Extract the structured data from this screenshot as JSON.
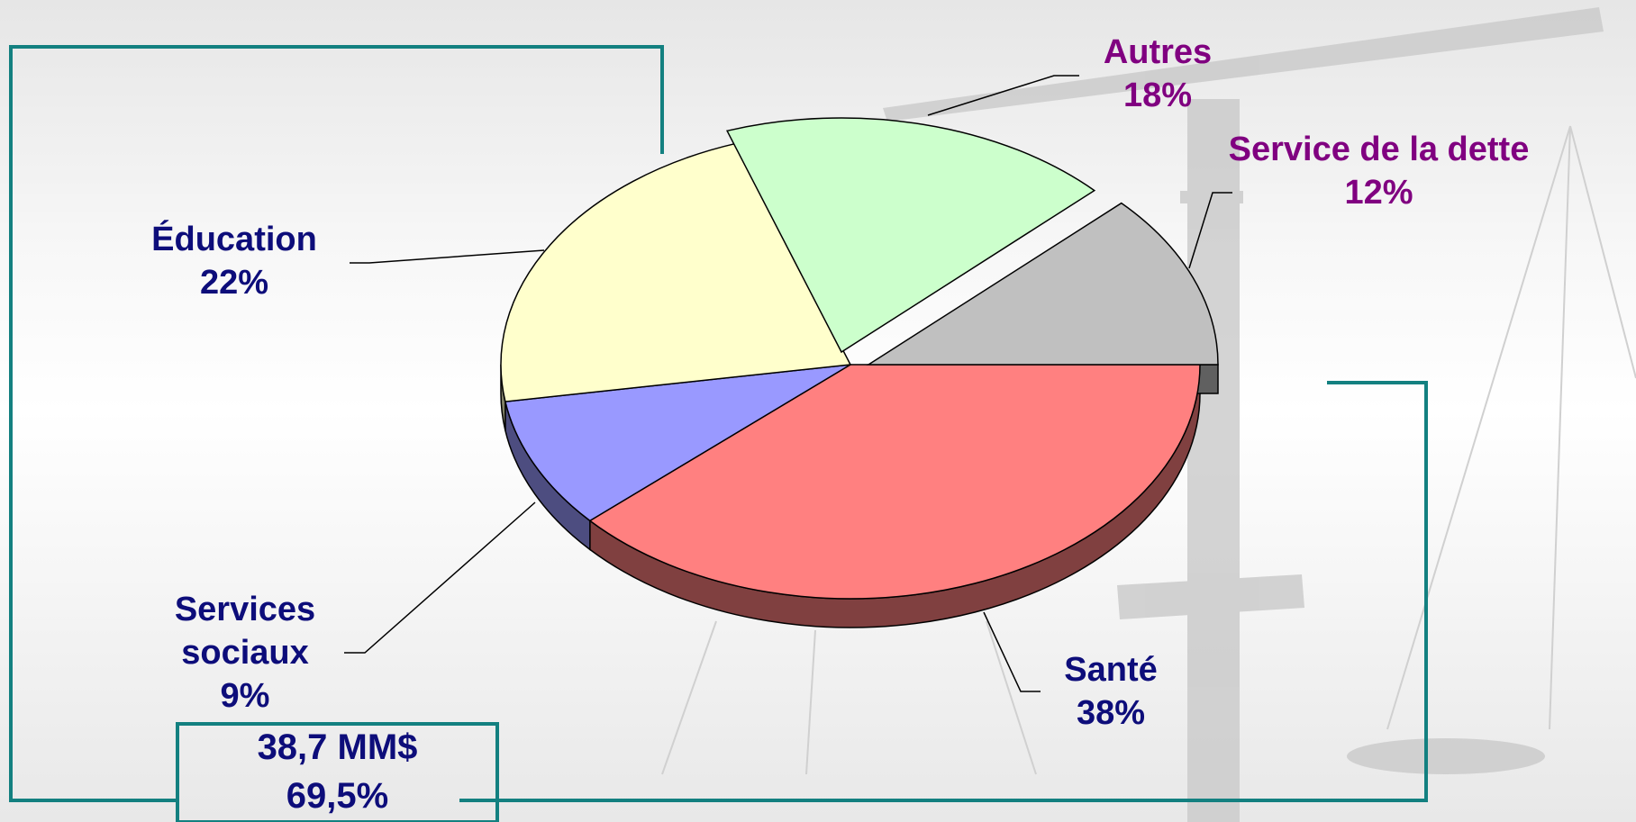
{
  "chart_data": {
    "type": "pie",
    "categories": [
      "Santé",
      "Services sociaux",
      "Éducation",
      "Autres",
      "Service de la dette"
    ],
    "values": [
      38,
      9,
      22,
      18,
      12
    ],
    "value_labels": [
      "38%",
      "9%",
      "22%",
      "18%",
      "12%"
    ],
    "colors": [
      "#ff8080",
      "#9999ff",
      "#ffffcc",
      "#ccffcc",
      "#c0c0c0"
    ],
    "label_colors": [
      "#0d0d7a",
      "#0d0d7a",
      "#0d0d7a",
      "#800080",
      "#800080"
    ],
    "annotations": [
      "38,7 MM$",
      "69,5%"
    ]
  }
}
